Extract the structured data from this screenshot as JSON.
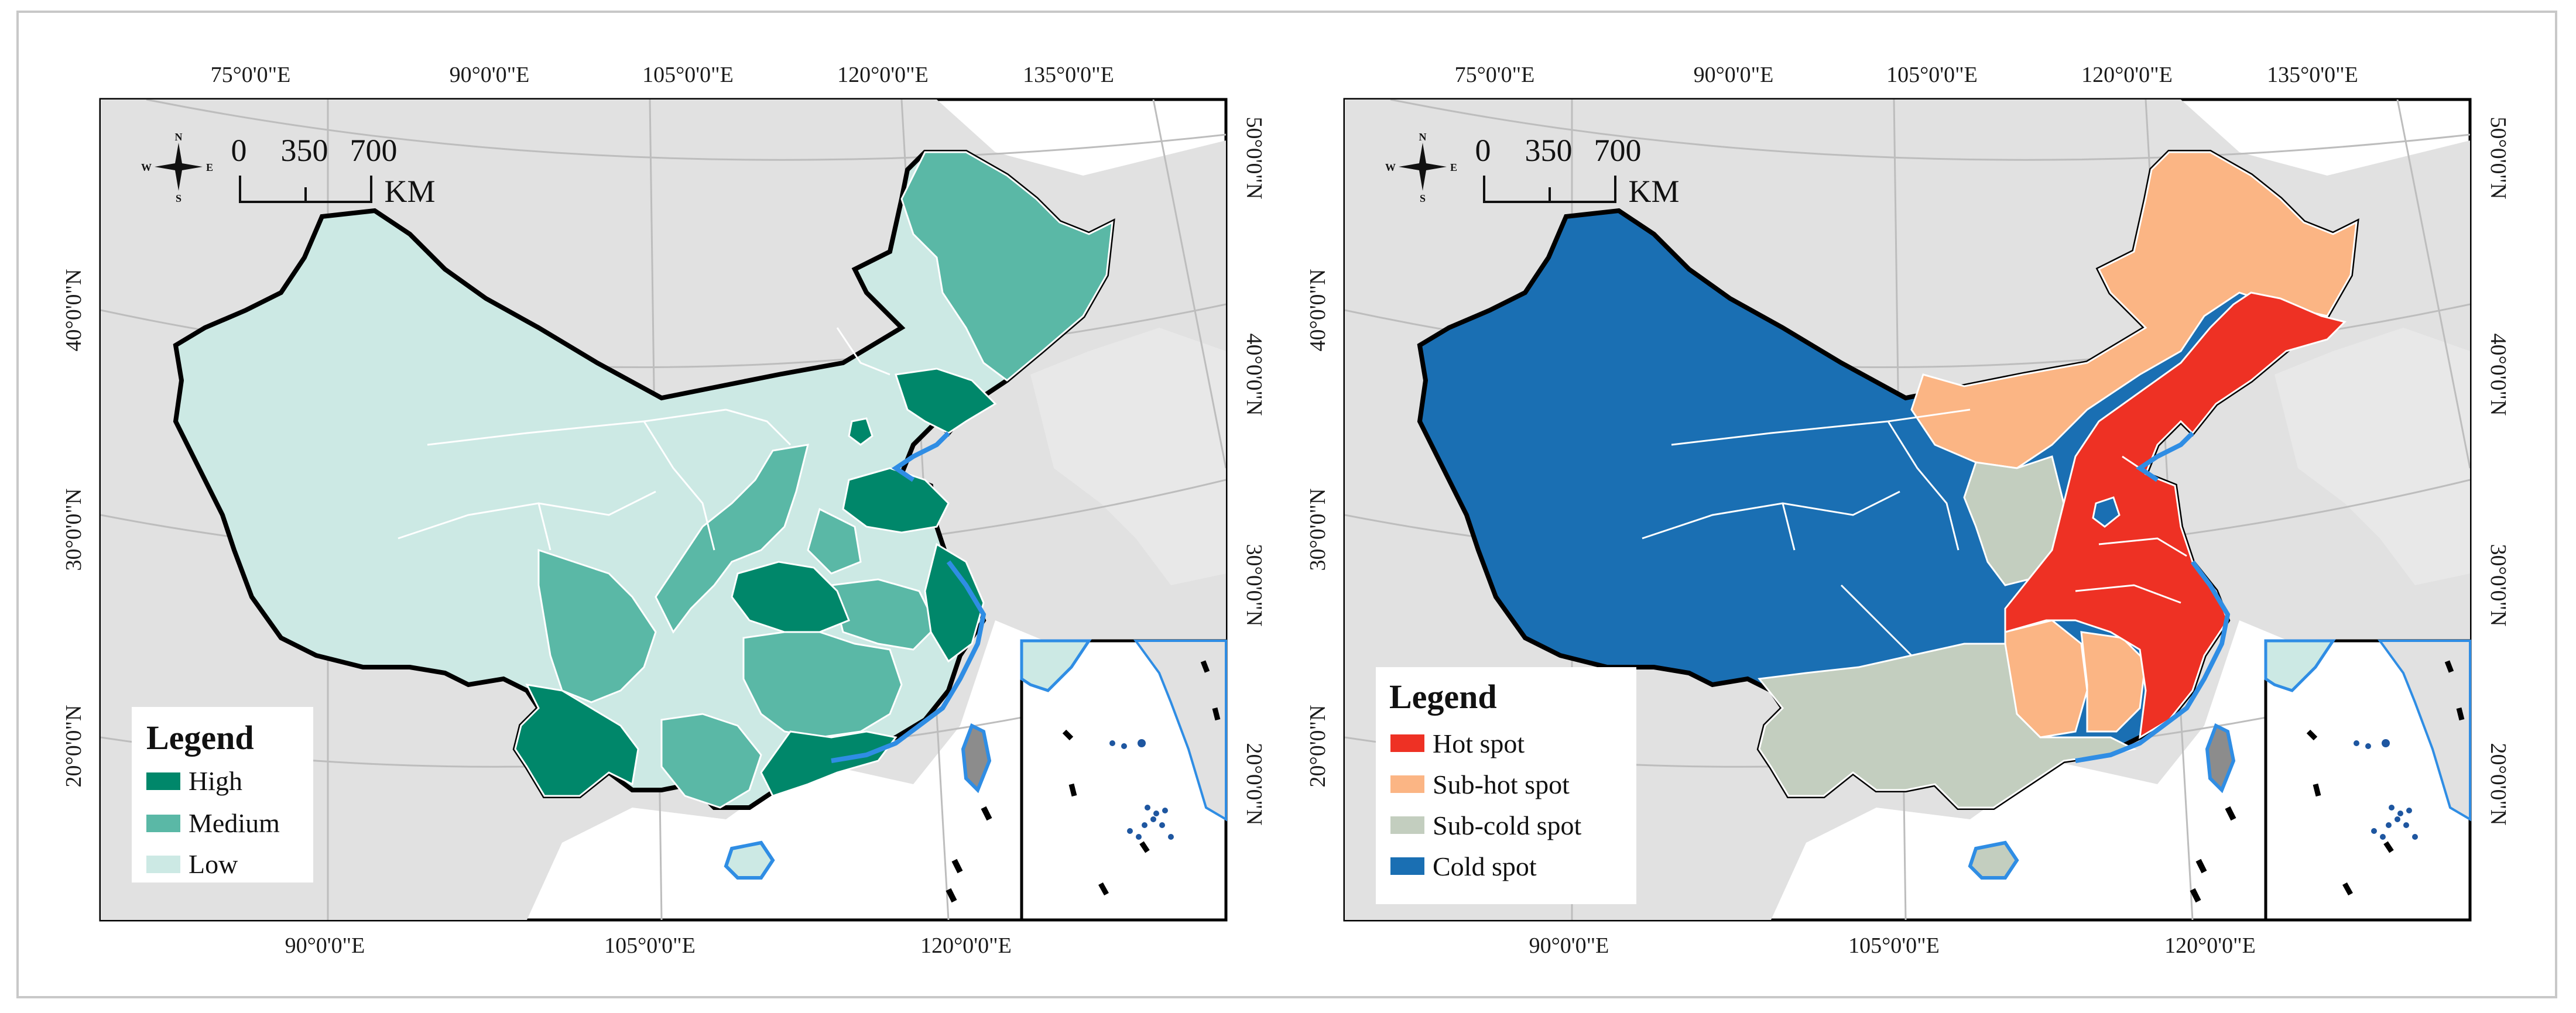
{
  "maps": [
    {
      "id": "level",
      "top_labels": [
        "75°0'0\"E",
        "90°0'0\"E",
        "105°0'0\"E",
        "120°0'0\"E",
        "135°0'0\"E"
      ],
      "bottom_labels": [
        "90°0'0\"E",
        "105°0'0\"E",
        "120°0'0\"E"
      ],
      "left_labels": [
        "40°0'0\"N",
        "30°0'0\"N",
        "20°0'0\"N"
      ],
      "right_labels": [
        "50°0'0\"N",
        "40°0'0\"N",
        "30°0'0\"N",
        "20°0'0\"N"
      ],
      "scale": {
        "ticks": [
          "0",
          "350",
          "700"
        ],
        "unit": "KM"
      },
      "compass": {
        "n": "N",
        "s": "S",
        "e": "E",
        "w": "W"
      },
      "legend": {
        "title": "Legend",
        "items": [
          {
            "label": "High",
            "color": "#00876a"
          },
          {
            "label": "Medium",
            "color": "#5ab8a6"
          },
          {
            "label": "Low",
            "color": "#cce9e4"
          }
        ]
      }
    },
    {
      "id": "hotspot",
      "top_labels": [
        "75°0'0\"E",
        "90°0'0\"E",
        "105°0'0\"E",
        "120°0'0\"E",
        "135°0'0\"E"
      ],
      "bottom_labels": [
        "90°0'0\"E",
        "105°0'0\"E",
        "120°0'0\"E"
      ],
      "left_labels": [
        "40°0'0\"N",
        "30°0'0\"N",
        "20°0'0\"N"
      ],
      "right_labels": [
        "50°0'0\"N",
        "40°0'0\"N",
        "30°0'0\"N",
        "20°0'0\"N"
      ],
      "scale": {
        "ticks": [
          "0",
          "350",
          "700"
        ],
        "unit": "KM"
      },
      "compass": {
        "n": "N",
        "s": "S",
        "e": "E",
        "w": "W"
      },
      "legend": {
        "title": "Legend",
        "items": [
          {
            "label": "Hot spot",
            "color": "#ee3124"
          },
          {
            "label": "Sub-hot spot",
            "color": "#fbb584"
          },
          {
            "label": "Sub-cold spot",
            "color": "#c3cebf"
          },
          {
            "label": "Cold spot",
            "color": "#1a6fb3"
          }
        ]
      }
    }
  ],
  "colors": {
    "background_land": "#e1e1e1",
    "sea": "#ffffff",
    "coast": "#2f8de4",
    "border": "#000000"
  }
}
